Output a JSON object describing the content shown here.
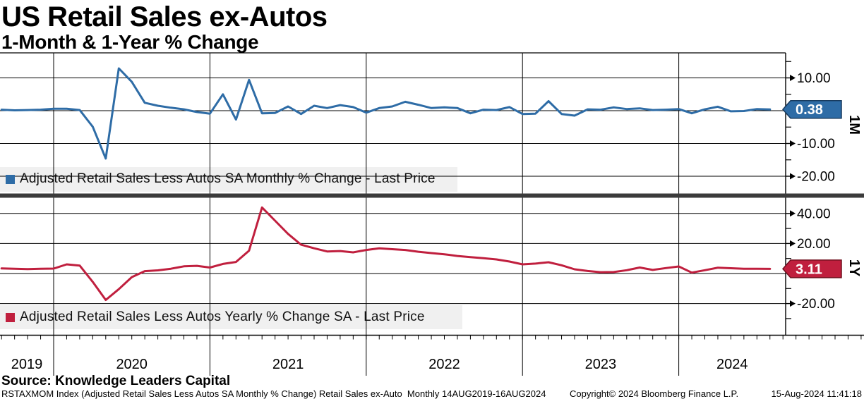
{
  "header": {
    "title": "US Retail Sales ex-Autos",
    "subtitle": "1-Month & 1-Year % Change"
  },
  "source_line": "Source: Knowledge Leaders Capital",
  "footer": {
    "security_info": "RSTAXMOM Index (Adjusted Retail Sales Less Autos SA Monthly % Change) Retail Sales ex-Auto  Monthly 14AUG2019-16AUG2024",
    "copyright": "Copyright© 2024 Bloomberg Finance L.P.",
    "timestamp": "15-Aug-2024 11:41:18"
  },
  "x_axis": {
    "year_labels": [
      "2019",
      "2020",
      "2021",
      "2022",
      "2023",
      "2024"
    ],
    "range": "14AUG2019-16AUG2024",
    "frequency": "monthly"
  },
  "chart_data": [
    {
      "type": "line",
      "panel": "top",
      "axis_label": "1M",
      "legend": "Adjusted Retail Sales Less Autos SA Monthly % Change - Last Price",
      "series_name": "Adjusted Retail Sales Less Autos SA Monthly % Change",
      "color": "#2e6ca6",
      "marker_border": "#173a5e",
      "last_price_label": "0.38",
      "last_price": 0.38,
      "x_start": "2019-08",
      "x_end": "2024-07",
      "values": [
        0.3,
        0.1,
        0.2,
        0.3,
        0.6,
        0.6,
        0.2,
        -4.9,
        -14.6,
        12.9,
        8.8,
        2.4,
        1.5,
        0.9,
        0.4,
        -0.4,
        -0.9,
        5.0,
        -2.7,
        9.4,
        -0.8,
        -0.7,
        1.3,
        -1.0,
        1.5,
        0.8,
        1.7,
        1.1,
        -0.6,
        0.8,
        1.3,
        2.7,
        1.8,
        0.8,
        1.0,
        0.8,
        -0.8,
        0.3,
        0.2,
        1.1,
        -1.0,
        -0.9,
        2.9,
        -1.0,
        -1.5,
        0.4,
        0.3,
        1.0,
        0.5,
        0.7,
        0.2,
        0.3,
        0.5,
        -0.8,
        0.4,
        1.2,
        -0.2,
        -0.1,
        0.5,
        0.38
      ],
      "y_axis": {
        "tick_labels": [
          {
            "value": 10,
            "label": "10.00"
          },
          {
            "value": -10,
            "label": "-10.00"
          },
          {
            "value": -20,
            "label": "-20.00"
          }
        ],
        "minor_ticks": [
          15,
          5,
          -5,
          -15
        ],
        "gridlines": [
          10,
          0,
          -10,
          -20
        ],
        "ylim": [
          -24.7,
          17.6
        ]
      }
    },
    {
      "type": "line",
      "panel": "bottom",
      "axis_label": "1Y",
      "legend": "Adjusted Retail Sales Less Autos Yearly % Change SA - Last Price",
      "series_name": "Adjusted Retail Sales Less Autos Yearly % Change SA",
      "color": "#c01f3e",
      "marker_border": "#70101f",
      "last_price_label": "3.11",
      "last_price": 3.11,
      "x_start": "2019-08",
      "x_end": "2024-07",
      "values": [
        3.4,
        3.2,
        2.9,
        3.2,
        3.3,
        6.1,
        5.3,
        -5.6,
        -17.6,
        -10.4,
        -2.4,
        1.6,
        2.1,
        3.2,
        4.8,
        5.1,
        4.0,
        6.4,
        7.7,
        15.2,
        44.0,
        35.2,
        26.4,
        19.2,
        16.8,
        14.7,
        15.0,
        14.1,
        15.7,
        16.8,
        16.2,
        15.7,
        14.5,
        13.6,
        12.8,
        11.7,
        10.9,
        10.2,
        9.4,
        8.0,
        6.1,
        6.6,
        7.5,
        5.5,
        2.8,
        1.7,
        0.9,
        1.0,
        2.2,
        4.0,
        2.4,
        3.6,
        4.7,
        0.6,
        2.2,
        3.9,
        3.5,
        3.2,
        3.2,
        3.11
      ],
      "y_axis": {
        "tick_labels": [
          {
            "value": 40,
            "label": "40.00"
          },
          {
            "value": 20,
            "label": "20.00"
          },
          {
            "value": -20,
            "label": "-20.00"
          }
        ],
        "minor_ticks": [
          30,
          10,
          -10,
          -30
        ],
        "gridlines": [
          40,
          20,
          0,
          -20
        ],
        "ylim": [
          -40.8,
          51.0
        ]
      }
    }
  ],
  "style": {
    "legend_bg": "#f0f0f0",
    "separator_color": "#3b3b3b",
    "grid_color": "#000000",
    "background": "#ffffff"
  }
}
